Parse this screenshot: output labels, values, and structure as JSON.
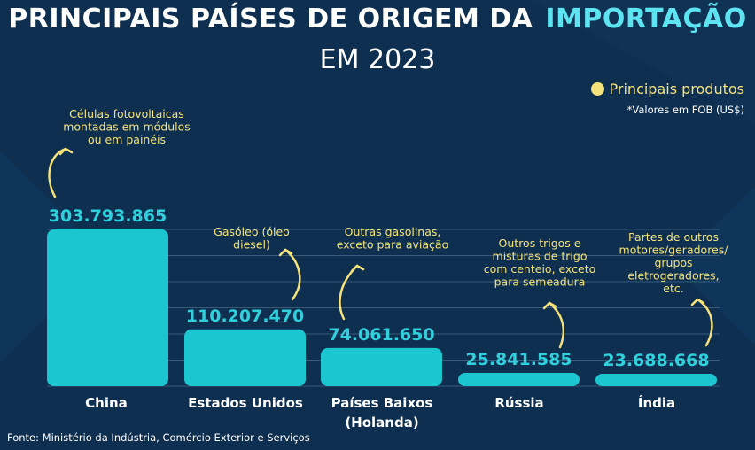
{
  "title": {
    "line1": "PRINCIPAIS PAÍSES DE ORIGEM DA",
    "highlight": "IMPORTAÇÃO",
    "line2": "EM 2023"
  },
  "legend": {
    "label": "Principais produtos",
    "note": "*Valores em FOB (US$)"
  },
  "source": "Fonte: Ministério da Indústria, Comércio Exterior e Serviços",
  "colors": {
    "background": "#0e2f50",
    "bar": "#1cc6d0",
    "value_text": "#2fd0dc",
    "annotation": "#f5e27a",
    "title_highlight": "#5ee3f0"
  },
  "chart_data": {
    "type": "bar",
    "categories": [
      [
        "China"
      ],
      [
        "Estados Unidos"
      ],
      [
        "Países Baixos",
        "(Holanda)"
      ],
      [
        "Rússia"
      ],
      [
        "Índia"
      ]
    ],
    "values": [
      303793865,
      110207470,
      74061650,
      25841585,
      23688668
    ],
    "value_labels": [
      "303.793.865",
      "110.207.470",
      "74.061.650",
      "25.841.585",
      "23.688.668"
    ],
    "annotations": [
      [
        "Células fotovoltaicas",
        "montadas em módulos",
        "ou em painéis"
      ],
      [
        "Gasóleo (óleo",
        "diesel)"
      ],
      [
        "Outras gasolinas,",
        "exceto para aviação"
      ],
      [
        "Outros trigos e",
        "misturas de trigo",
        "com centeio, exceto",
        "para semeadura"
      ],
      [
        "Partes de outros",
        "motores/geradores/",
        "grupos",
        "eletrogeradores,",
        "etc."
      ]
    ],
    "grid": true
  }
}
